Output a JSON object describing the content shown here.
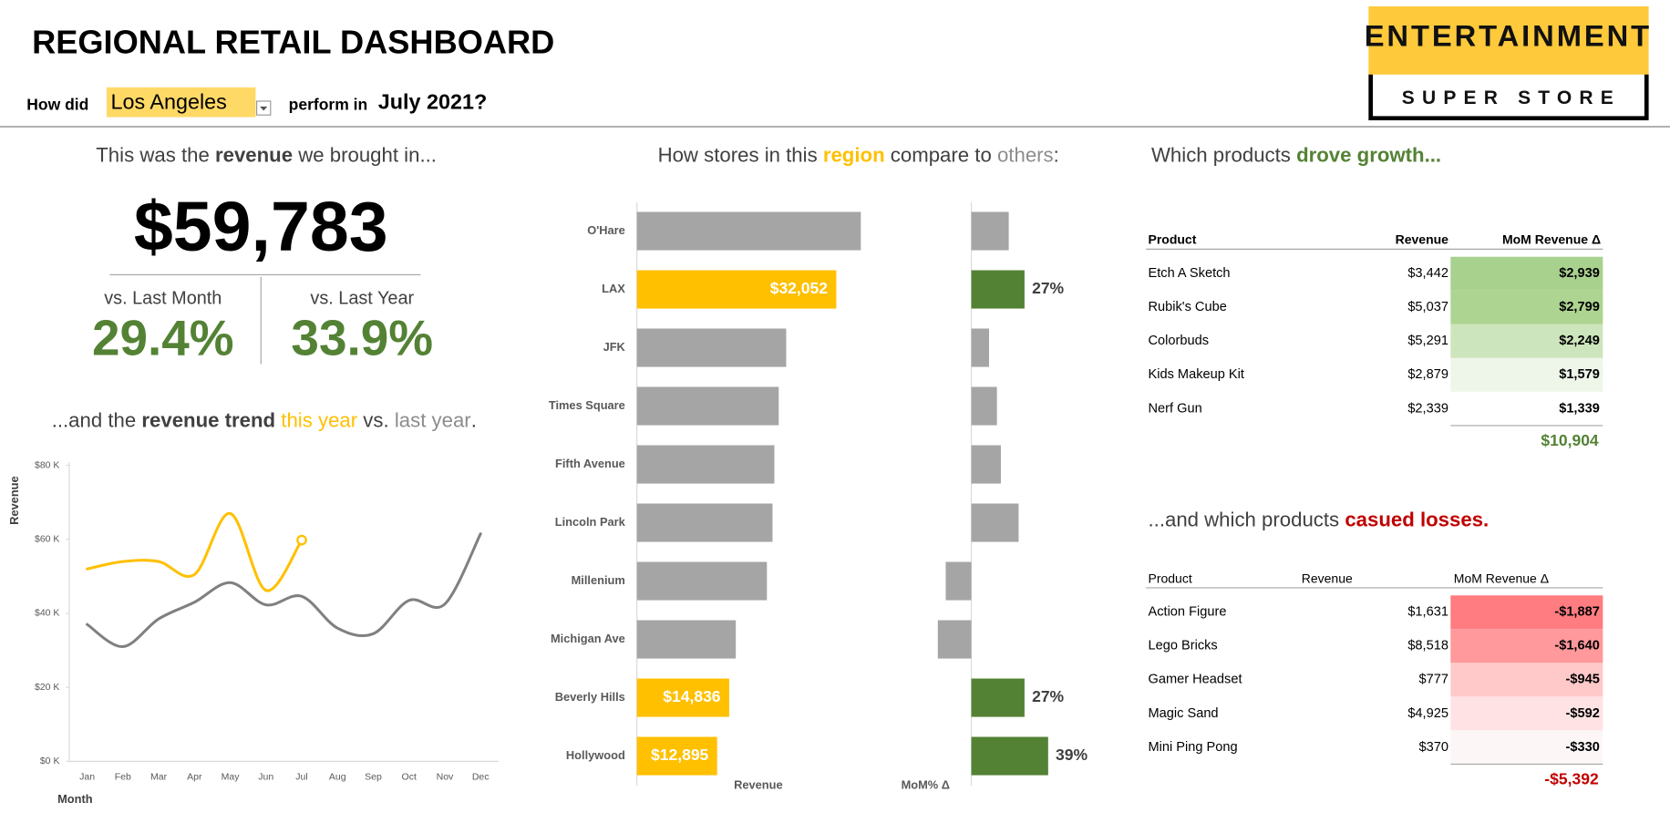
{
  "header": {
    "title": "REGIONAL RETAIL DASHBOARD",
    "prompt": "How did",
    "region": "Los Angeles",
    "connector": "perform in",
    "period": "July 2021?"
  },
  "logo": {
    "top": "ENTERTAINMENT",
    "bottom": "SUPER STORE"
  },
  "kpi": {
    "heading": [
      "This was the ",
      "revenue",
      " we brought in..."
    ],
    "revenue": "$59,783",
    "mom_label": "vs. Last Month",
    "mom": "29.4%",
    "yoy_label": "vs. Last Year",
    "yoy": "33.9%"
  },
  "chart_data": [
    {
      "type": "line",
      "title": [
        "...and the ",
        "revenue trend ",
        "this year",
        " vs. ",
        "last year",
        "."
      ],
      "xlabel": "Month",
      "ylabel": "Revenue",
      "categories": [
        "Jan",
        "Feb",
        "Mar",
        "Apr",
        "May",
        "Jun",
        "Jul",
        "Aug",
        "Sep",
        "Oct",
        "Nov",
        "Dec"
      ],
      "ylim": [
        0,
        80000
      ],
      "yticks": [
        {
          "value": 0,
          "label": "$0 K"
        },
        {
          "value": 20000,
          "label": "$20 K"
        },
        {
          "value": 40000,
          "label": "$40 K"
        },
        {
          "value": 60000,
          "label": "$60 K"
        },
        {
          "value": 80000,
          "label": "$80 K"
        }
      ],
      "series": [
        {
          "color": "#ffc000",
          "marker": "last",
          "values": [
            52000,
            54000,
            54000,
            50500,
            67000,
            46200,
            59783,
            null,
            null,
            null,
            null,
            null
          ]
        },
        {
          "color": "#808080",
          "values": [
            37000,
            31000,
            38500,
            43000,
            48300,
            42300,
            44600,
            36000,
            34500,
            43500,
            42500,
            61500
          ]
        }
      ]
    },
    {
      "type": "bar",
      "orientation": "horizontal",
      "title": [
        "How stores in this ",
        "region",
        " compare to ",
        "others",
        ":"
      ],
      "categories": [
        "O'Hare",
        "LAX",
        "JFK",
        "Times Square",
        "Fifth Avenue",
        "Lincoln Park",
        "Millenium",
        "Michigan Ave",
        "Beverly Hills",
        "Hollywood"
      ],
      "series": [
        {
          "name": "Revenue",
          "xlim": [
            0,
            50000
          ],
          "values": [
            36000,
            32052,
            24000,
            22800,
            22100,
            21800,
            20900,
            15900,
            14836,
            12895
          ],
          "colors": [
            "#a5a5a5",
            "#ffc000",
            "#a5a5a5",
            "#a5a5a5",
            "#a5a5a5",
            "#a5a5a5",
            "#a5a5a5",
            "#a5a5a5",
            "#ffc000",
            "#ffc000"
          ],
          "value_labels": [
            null,
            "$32,052",
            null,
            null,
            null,
            null,
            null,
            null,
            "$14,836",
            "$12,895"
          ]
        },
        {
          "name": "MoM% Δ",
          "xlim": [
            -30,
            60
          ],
          "values": [
            19,
            27,
            9,
            13,
            15,
            24,
            -13,
            -17,
            27,
            39
          ],
          "colors": [
            "#a5a5a5",
            "#548235",
            "#a5a5a5",
            "#a5a5a5",
            "#a5a5a5",
            "#a5a5a5",
            "#a5a5a5",
            "#a5a5a5",
            "#548235",
            "#548235"
          ],
          "value_labels": [
            null,
            "27%",
            null,
            null,
            null,
            null,
            null,
            null,
            "27%",
            "39%"
          ]
        }
      ]
    }
  ],
  "growth": {
    "heading": [
      "Which products ",
      "drove growth..."
    ],
    "columns": [
      "Product",
      "Revenue",
      "MoM Revenue Δ"
    ],
    "rows": [
      [
        "Etch A Sketch",
        "$3,442",
        "$2,939"
      ],
      [
        "Rubik's Cube",
        "$5,037",
        "$2,799"
      ],
      [
        "Colorbuds",
        "$5,291",
        "$2,249"
      ],
      [
        "Kids Makeup Kit",
        "$2,879",
        "$1,579"
      ],
      [
        "Nerf Gun",
        "$2,339",
        "$1,339"
      ]
    ],
    "fills": [
      "#a9d18e",
      "#aed491",
      "#cde5bd",
      "#eef6e9",
      "#ffffff"
    ],
    "total": "$10,904"
  },
  "losses": {
    "heading": [
      "...and which products ",
      "casued losses."
    ],
    "columns": [
      "Product",
      "Revenue",
      "MoM Revenue Δ"
    ],
    "rows": [
      [
        "Action Figure",
        "$1,631",
        "-$1,887"
      ],
      [
        "Lego Bricks",
        "$8,518",
        "-$1,640"
      ],
      [
        "Gamer Headset",
        "$777",
        "-$945"
      ],
      [
        "Magic Sand",
        "$4,925",
        "-$592"
      ],
      [
        "Mini Ping Pong",
        "$370",
        "-$330"
      ]
    ],
    "fills": [
      "#ff7c80",
      "#ff999b",
      "#ffc9ca",
      "#ffe3e4",
      "#fcf6f7"
    ],
    "total": "-$5,392"
  }
}
